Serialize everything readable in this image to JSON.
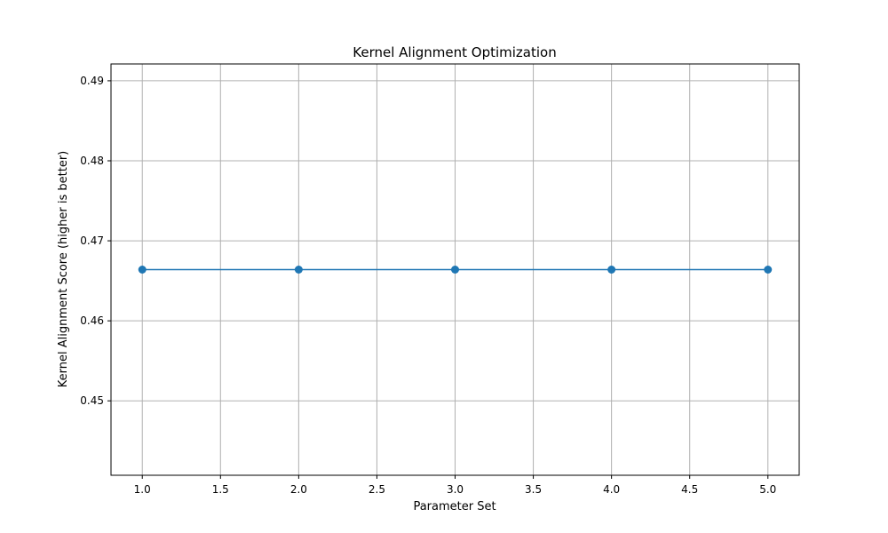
{
  "chart_data": {
    "type": "line",
    "title": "Kernel Alignment Optimization",
    "xlabel": "Parameter Set",
    "ylabel": "Kernel Alignment Score (higher is better)",
    "x": [
      1,
      2,
      3,
      4,
      5
    ],
    "series": [
      {
        "values": [
          0.4664,
          0.4664,
          0.4664,
          0.4664,
          0.4664
        ]
      }
    ],
    "xlim": [
      0.8,
      5.2
    ],
    "ylim": [
      0.4407,
      0.4921
    ],
    "x_ticks": [
      "1.0",
      "1.5",
      "2.0",
      "2.5",
      "3.0",
      "3.5",
      "4.0",
      "4.5",
      "5.0"
    ],
    "y_ticks": [
      "0.45",
      "0.46",
      "0.47",
      "0.48",
      "0.49"
    ],
    "grid": true,
    "marker": "circle",
    "line_color": "#1f77b4",
    "grid_color": "#b0b0b0"
  }
}
